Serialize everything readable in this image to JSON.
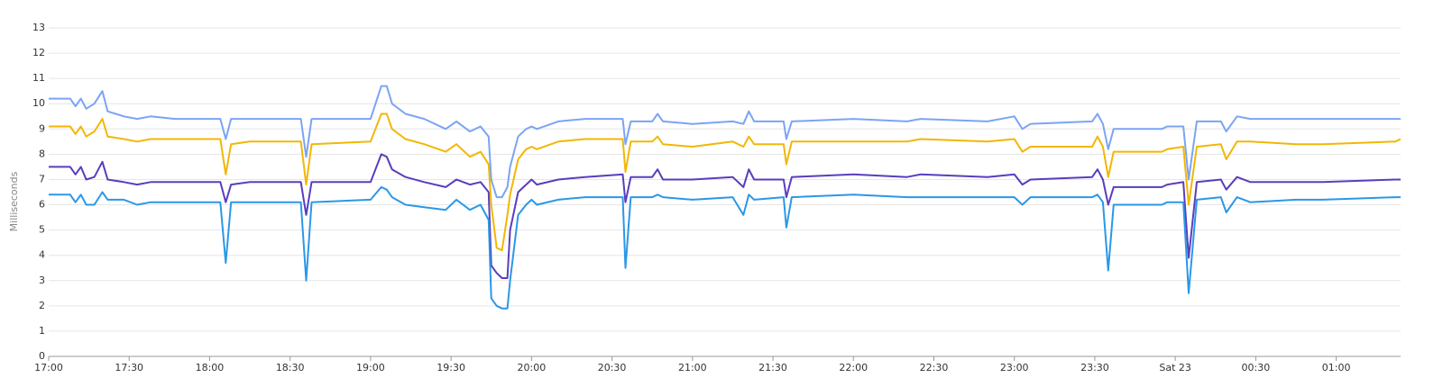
{
  "chart_data": {
    "type": "line",
    "y_label": "Milliseconds",
    "x": [
      0,
      8,
      10,
      12,
      14,
      17,
      20,
      22,
      28,
      33,
      38,
      47,
      64,
      66,
      68,
      75,
      94,
      96,
      98,
      120,
      124,
      126,
      128,
      133,
      140,
      148,
      152,
      157,
      161,
      164,
      165,
      167,
      169,
      171,
      172,
      175,
      178,
      180,
      182,
      190,
      200,
      214,
      215,
      217,
      225,
      227,
      229,
      240,
      255,
      259,
      261,
      263,
      274,
      275,
      277,
      300,
      320,
      325,
      350,
      360,
      363,
      366,
      389,
      391,
      393,
      395,
      397,
      405,
      415,
      417,
      423,
      425,
      428,
      437,
      439,
      443,
      448,
      465,
      475,
      502,
      504
    ],
    "xlim": [
      0,
      504
    ],
    "xticks": [
      {
        "value": 0,
        "label": "17:00"
      },
      {
        "value": 30,
        "label": "17:30"
      },
      {
        "value": 60,
        "label": "18:00"
      },
      {
        "value": 90,
        "label": "18:30"
      },
      {
        "value": 120,
        "label": "19:00"
      },
      {
        "value": 150,
        "label": "19:30"
      },
      {
        "value": 180,
        "label": "20:00"
      },
      {
        "value": 210,
        "label": "20:30"
      },
      {
        "value": 240,
        "label": "21:00"
      },
      {
        "value": 270,
        "label": "21:30"
      },
      {
        "value": 300,
        "label": "22:00"
      },
      {
        "value": 330,
        "label": "22:30"
      },
      {
        "value": 360,
        "label": "23:00"
      },
      {
        "value": 390,
        "label": "23:30"
      },
      {
        "value": 420,
        "label": "Sat 23"
      },
      {
        "value": 450,
        "label": "00:30"
      },
      {
        "value": 480,
        "label": "01:00"
      }
    ],
    "ylim": [
      0,
      13
    ],
    "yticks": [
      0,
      1,
      2,
      3,
      4,
      5,
      6,
      7,
      8,
      9,
      10,
      11,
      12,
      13
    ],
    "grid": true,
    "series": [
      {
        "color": "#7ba4f4",
        "values": [
          10.2,
          10.2,
          9.9,
          10.2,
          9.8,
          10.0,
          10.5,
          9.7,
          9.5,
          9.4,
          9.5,
          9.4,
          9.4,
          8.6,
          9.4,
          9.4,
          9.4,
          7.9,
          9.4,
          9.4,
          10.7,
          10.7,
          10.0,
          9.6,
          9.4,
          9.0,
          9.3,
          8.9,
          9.1,
          8.7,
          7.0,
          6.3,
          6.3,
          6.7,
          7.5,
          8.7,
          9.0,
          9.1,
          9.0,
          9.3,
          9.4,
          9.4,
          8.4,
          9.3,
          9.3,
          9.6,
          9.3,
          9.2,
          9.3,
          9.2,
          9.7,
          9.3,
          9.3,
          8.6,
          9.3,
          9.4,
          9.3,
          9.4,
          9.3,
          9.5,
          9.0,
          9.2,
          9.3,
          9.6,
          9.2,
          8.2,
          9.0,
          9.0,
          9.0,
          9.1,
          9.1,
          7.0,
          9.3,
          9.3,
          8.9,
          9.5,
          9.4,
          9.4,
          9.4,
          9.4,
          9.4
        ]
      },
      {
        "color": "#f2b705",
        "values": [
          9.1,
          9.1,
          8.8,
          9.1,
          8.7,
          8.9,
          9.4,
          8.7,
          8.6,
          8.5,
          8.6,
          8.6,
          8.6,
          7.2,
          8.4,
          8.5,
          8.5,
          6.8,
          8.4,
          8.5,
          9.6,
          9.6,
          9.0,
          8.6,
          8.4,
          8.1,
          8.4,
          7.9,
          8.1,
          7.6,
          6.0,
          4.3,
          4.2,
          5.6,
          6.4,
          7.8,
          8.2,
          8.3,
          8.2,
          8.5,
          8.6,
          8.6,
          7.3,
          8.5,
          8.5,
          8.7,
          8.4,
          8.3,
          8.5,
          8.3,
          8.7,
          8.4,
          8.4,
          7.6,
          8.5,
          8.5,
          8.5,
          8.6,
          8.5,
          8.6,
          8.1,
          8.3,
          8.3,
          8.7,
          8.3,
          7.1,
          8.1,
          8.1,
          8.1,
          8.2,
          8.3,
          6.0,
          8.3,
          8.4,
          7.8,
          8.5,
          8.5,
          8.4,
          8.4,
          8.5,
          8.6
        ]
      },
      {
        "color": "#5a3dbd",
        "values": [
          7.5,
          7.5,
          7.2,
          7.5,
          7.0,
          7.1,
          7.7,
          7.0,
          6.9,
          6.8,
          6.9,
          6.9,
          6.9,
          6.1,
          6.8,
          6.9,
          6.9,
          5.6,
          6.9,
          6.9,
          8.0,
          7.9,
          7.4,
          7.1,
          6.9,
          6.7,
          7.0,
          6.8,
          6.9,
          6.5,
          3.6,
          3.3,
          3.1,
          3.1,
          5.0,
          6.5,
          6.8,
          7.0,
          6.8,
          7.0,
          7.1,
          7.2,
          6.1,
          7.1,
          7.1,
          7.4,
          7.0,
          7.0,
          7.1,
          6.7,
          7.4,
          7.0,
          7.0,
          6.3,
          7.1,
          7.2,
          7.1,
          7.2,
          7.1,
          7.2,
          6.8,
          7.0,
          7.1,
          7.4,
          7.0,
          6.0,
          6.7,
          6.7,
          6.7,
          6.8,
          6.9,
          3.9,
          6.9,
          7.0,
          6.6,
          7.1,
          6.9,
          6.9,
          6.9,
          7.0,
          7.0
        ]
      },
      {
        "color": "#2a98e6",
        "values": [
          6.4,
          6.4,
          6.1,
          6.4,
          6.0,
          6.0,
          6.5,
          6.2,
          6.2,
          6.0,
          6.1,
          6.1,
          6.1,
          3.7,
          6.1,
          6.1,
          6.1,
          3.0,
          6.1,
          6.2,
          6.7,
          6.6,
          6.3,
          6.0,
          5.9,
          5.8,
          6.2,
          5.8,
          6.0,
          5.4,
          2.3,
          2.0,
          1.9,
          1.9,
          3.0,
          5.6,
          6.0,
          6.2,
          6.0,
          6.2,
          6.3,
          6.3,
          3.5,
          6.3,
          6.3,
          6.4,
          6.3,
          6.2,
          6.3,
          5.6,
          6.4,
          6.2,
          6.3,
          5.1,
          6.3,
          6.4,
          6.3,
          6.3,
          6.3,
          6.3,
          6.0,
          6.3,
          6.3,
          6.4,
          6.1,
          3.4,
          6.0,
          6.0,
          6.0,
          6.1,
          6.1,
          2.5,
          6.2,
          6.3,
          5.7,
          6.3,
          6.1,
          6.2,
          6.2,
          6.3,
          6.3
        ]
      }
    ]
  }
}
